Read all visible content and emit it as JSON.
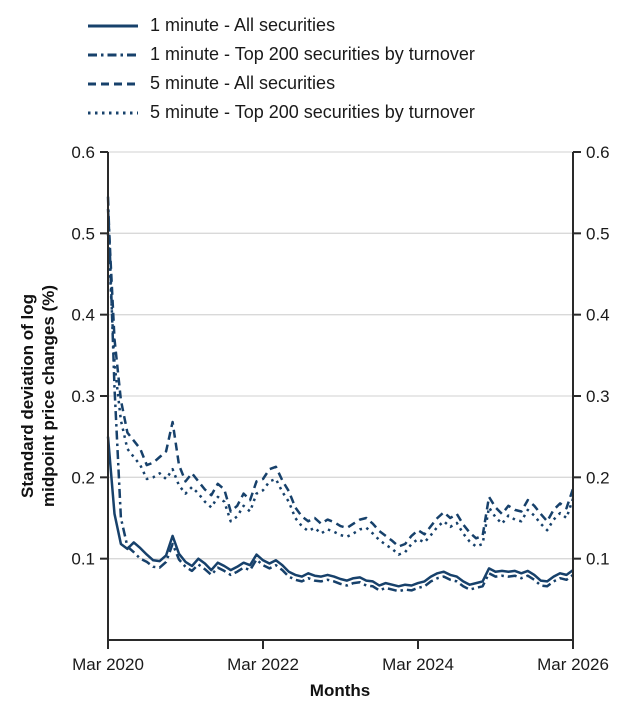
{
  "legend": {
    "items": [
      {
        "label": "1 minute - All securities"
      },
      {
        "label": "1 minute - Top 200 securities by turnover"
      },
      {
        "label": "5 minute - All securities"
      },
      {
        "label": "5 minute - Top 200 securities by turnover"
      }
    ]
  },
  "axes": {
    "ylabel_line1": "Standard deviation of log",
    "ylabel_line2": "midpoint price changes (%)",
    "xlabel": "Months"
  },
  "chart_data": {
    "type": "line",
    "title": "",
    "xlabel": "Months",
    "ylabel": "Standard deviation of log midpoint price changes (%)",
    "x_unit": "monthly observations, Mar 2020 to Mar 2026",
    "x_tick_labels": [
      "Mar 2020",
      "Mar 2022",
      "Mar 2024",
      "Mar 2026"
    ],
    "x_tick_month_index": [
      0,
      24,
      48,
      72
    ],
    "x_range_months": [
      0,
      72
    ],
    "ylim": [
      0,
      0.6
    ],
    "yticks": [
      0.1,
      0.2,
      0.3,
      0.4,
      0.5,
      0.6
    ],
    "grid": "horizontal",
    "legend_position": "top-left",
    "colors": {
      "line": "#17416b",
      "axis": "#2a2a2a",
      "grid": "#d9d9d9",
      "text": "#1a1a1a"
    },
    "series": [
      {
        "name": "1 minute - All securities",
        "dash": "",
        "values": [
          0.25,
          0.155,
          0.118,
          0.112,
          0.12,
          0.113,
          0.105,
          0.098,
          0.097,
          0.104,
          0.128,
          0.106,
          0.096,
          0.091,
          0.1,
          0.094,
          0.086,
          0.095,
          0.091,
          0.086,
          0.09,
          0.095,
          0.092,
          0.105,
          0.098,
          0.094,
          0.098,
          0.092,
          0.084,
          0.08,
          0.078,
          0.082,
          0.079,
          0.078,
          0.08,
          0.078,
          0.075,
          0.073,
          0.076,
          0.077,
          0.073,
          0.072,
          0.067,
          0.07,
          0.068,
          0.066,
          0.068,
          0.067,
          0.07,
          0.072,
          0.078,
          0.082,
          0.084,
          0.08,
          0.078,
          0.072,
          0.068,
          0.07,
          0.072,
          0.088,
          0.084,
          0.085,
          0.084,
          0.085,
          0.082,
          0.085,
          0.08,
          0.073,
          0.072,
          0.078,
          0.082,
          0.08,
          0.086
        ]
      },
      {
        "name": "1 minute - Top 200 securities by turnover",
        "dash": "9 4 2.5 4",
        "values": [
          0.545,
          0.31,
          0.15,
          0.115,
          0.108,
          0.1,
          0.096,
          0.09,
          0.089,
          0.096,
          0.118,
          0.099,
          0.09,
          0.085,
          0.093,
          0.087,
          0.08,
          0.089,
          0.085,
          0.08,
          0.084,
          0.089,
          0.086,
          0.099,
          0.092,
          0.088,
          0.092,
          0.086,
          0.078,
          0.074,
          0.072,
          0.076,
          0.073,
          0.072,
          0.074,
          0.072,
          0.069,
          0.067,
          0.07,
          0.071,
          0.067,
          0.066,
          0.061,
          0.064,
          0.062,
          0.06,
          0.062,
          0.061,
          0.064,
          0.066,
          0.072,
          0.076,
          0.078,
          0.074,
          0.072,
          0.066,
          0.062,
          0.064,
          0.066,
          0.082,
          0.078,
          0.079,
          0.078,
          0.079,
          0.076,
          0.079,
          0.074,
          0.067,
          0.066,
          0.072,
          0.076,
          0.074,
          0.08
        ]
      },
      {
        "name": "5 minute - All securities",
        "dash": "8 5",
        "values": [
          0.53,
          0.37,
          0.295,
          0.255,
          0.245,
          0.235,
          0.215,
          0.218,
          0.225,
          0.232,
          0.268,
          0.215,
          0.195,
          0.205,
          0.195,
          0.185,
          0.178,
          0.192,
          0.185,
          0.158,
          0.165,
          0.18,
          0.172,
          0.195,
          0.198,
          0.21,
          0.213,
          0.196,
          0.183,
          0.163,
          0.152,
          0.146,
          0.15,
          0.143,
          0.148,
          0.145,
          0.14,
          0.138,
          0.143,
          0.148,
          0.15,
          0.143,
          0.134,
          0.128,
          0.122,
          0.115,
          0.118,
          0.128,
          0.135,
          0.13,
          0.14,
          0.15,
          0.157,
          0.15,
          0.155,
          0.142,
          0.132,
          0.125,
          0.128,
          0.176,
          0.163,
          0.155,
          0.165,
          0.16,
          0.158,
          0.172,
          0.165,
          0.155,
          0.146,
          0.16,
          0.168,
          0.162,
          0.186
        ]
      },
      {
        "name": "5 minute - Top 200 securities by turnover",
        "dash": "2.5 4.5",
        "values": [
          0.5,
          0.34,
          0.27,
          0.235,
          0.225,
          0.215,
          0.198,
          0.2,
          0.205,
          0.198,
          0.21,
          0.19,
          0.18,
          0.188,
          0.18,
          0.17,
          0.163,
          0.176,
          0.17,
          0.146,
          0.152,
          0.165,
          0.158,
          0.18,
          0.184,
          0.195,
          0.198,
          0.182,
          0.17,
          0.15,
          0.14,
          0.134,
          0.138,
          0.131,
          0.136,
          0.133,
          0.129,
          0.127,
          0.131,
          0.136,
          0.138,
          0.131,
          0.123,
          0.117,
          0.112,
          0.105,
          0.108,
          0.118,
          0.124,
          0.12,
          0.129,
          0.139,
          0.146,
          0.139,
          0.144,
          0.131,
          0.121,
          0.115,
          0.118,
          0.163,
          0.151,
          0.143,
          0.153,
          0.148,
          0.146,
          0.16,
          0.153,
          0.143,
          0.135,
          0.148,
          0.156,
          0.15,
          0.174
        ]
      }
    ]
  }
}
